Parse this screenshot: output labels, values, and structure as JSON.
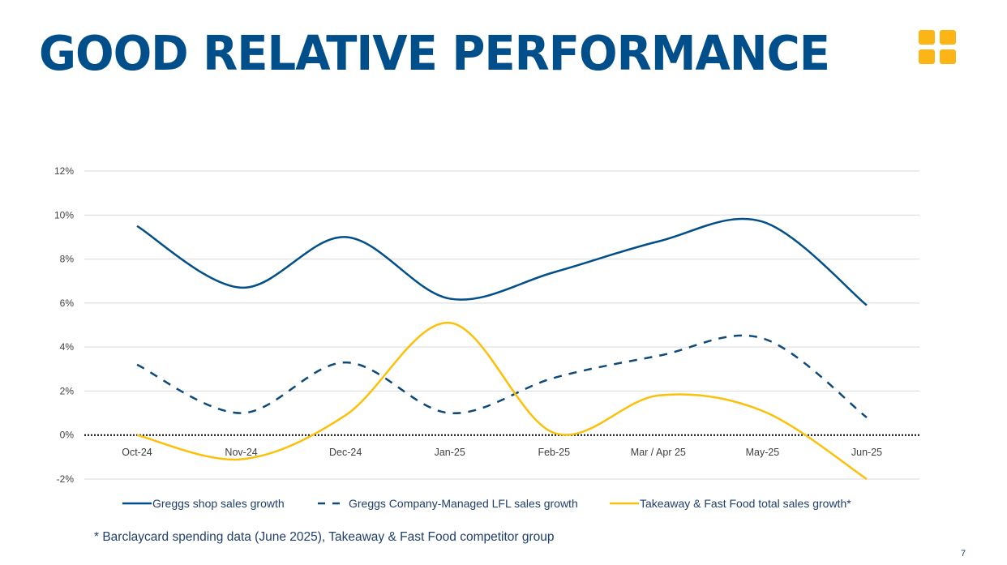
{
  "header": {
    "title": "GOOD RELATIVE PERFORMANCE",
    "logo_color": "#fdb515"
  },
  "chart_data": {
    "type": "line",
    "title": "",
    "xlabel": "",
    "ylabel": "",
    "categories": [
      "Oct-24",
      "Nov-24",
      "Dec-24",
      "Jan-25",
      "Feb-25",
      "Mar / Apr 25",
      "May-25",
      "Jun-25"
    ],
    "ylim": [
      -2,
      12
    ],
    "yticks": [
      -2,
      0,
      2,
      4,
      6,
      8,
      10,
      12
    ],
    "ytick_labels": [
      "-2%",
      "0%",
      "2%",
      "4%",
      "6%",
      "8%",
      "10%",
      "12%"
    ],
    "grid": true,
    "legend_position": "bottom",
    "series": [
      {
        "name": "Greggs shop sales growth",
        "style": "solid",
        "color": "#004f8a",
        "values": [
          9.5,
          6.7,
          9.0,
          6.2,
          7.4,
          8.8,
          9.7,
          5.9
        ]
      },
      {
        "name": "Greggs Company-Managed LFL sales growth",
        "style": "dashed",
        "color": "#0d4a7a",
        "values": [
          3.2,
          1.0,
          3.3,
          1.0,
          2.6,
          3.6,
          4.4,
          0.8
        ]
      },
      {
        "name": "Takeaway & Fast Food total sales growth*",
        "style": "solid",
        "color": "#fbc10a",
        "values": [
          0.0,
          -1.1,
          0.9,
          5.1,
          0.1,
          1.8,
          1.1,
          -2.0
        ]
      }
    ]
  },
  "footnote": "* Barclaycard spending data (June 2025), Takeaway & Fast Food competitor group",
  "page_number": "7"
}
